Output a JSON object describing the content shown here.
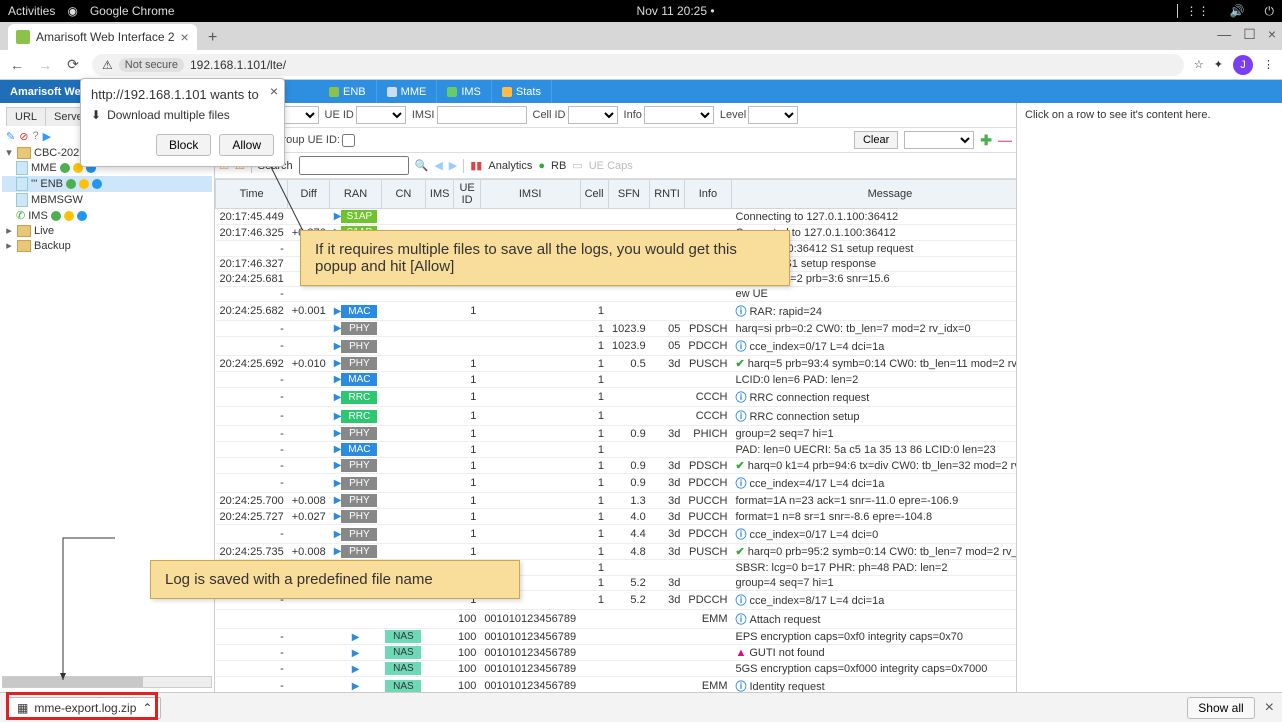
{
  "sys": {
    "activities": "Activities",
    "app": "Google Chrome",
    "clock": "Nov 11  20:25  •"
  },
  "tab": {
    "title": "Amarisoft Web Interface 2"
  },
  "addr": {
    "notsecure": "Not secure",
    "url": "192.168.1.101/lte/",
    "avatar": "J"
  },
  "bluetabs": {
    "title": "Amarisoft Web G",
    "enb": "ENB",
    "mme": "MME",
    "ims": "IMS",
    "stats": "Stats"
  },
  "subtabs": [
    "URL",
    "Server"
  ],
  "tree": {
    "root": "CBC-20210",
    "items": [
      {
        "label": "MME",
        "sel": false
      },
      {
        "label": "ENB",
        "sel": true
      },
      {
        "label": "MBMSGW",
        "sel": false
      },
      {
        "label": "IMS",
        "sel": false
      }
    ],
    "live": "Live",
    "backup": "Backup"
  },
  "filters": {
    "layer": "Layer",
    "ueid": "UE ID",
    "imsi": "IMSI",
    "cellid": "Cell ID",
    "info": "Info",
    "level": "Level",
    "time": "00:00.000",
    "group": "Group UE ID:",
    "clear": "Clear",
    "search": "Search",
    "analytics": "Analytics",
    "rb": "RB",
    "uecaps": "UE Caps"
  },
  "cols": [
    "Time",
    "Diff",
    "RAN",
    "CN",
    "IMS",
    "UE ID",
    "IMSI",
    "Cell",
    "SFN",
    "RNTI",
    "Info",
    "Message"
  ],
  "rows": [
    {
      "t": "20:17:45.449",
      "d": "",
      "r": "S1AP",
      "rc": "c-s1ap",
      "msg": "Connecting to 127.0.1.100:36412"
    },
    {
      "t": "20:17:46.325",
      "d": "+0.876",
      "r": "S1AP",
      "rc": "c-s1ap",
      "msg": "Connected to 127.0.1.100:36412"
    },
    {
      "t": "-",
      "d": "",
      "r": "S1AP",
      "rc": "c-s1ap",
      "msg": "127.0.1.100:36412 S1 setup request"
    },
    {
      "t": "20:17:46.327",
      "d": "",
      "r": "",
      "rc": "",
      "msg": "00:36412 S1 setup response"
    },
    {
      "t": "20:24:25.681",
      "d": "",
      "r": "",
      "rc": "",
      "msg": "hdex=24 ta=2 prb=3:6 snr=15.6"
    },
    {
      "t": "-",
      "d": "",
      "r": "",
      "rc": "",
      "msg": "ew UE"
    },
    {
      "t": "20:24:25.682",
      "d": "+0.001",
      "r": "MAC",
      "rc": "c-mac",
      "u": "1",
      "c": "1",
      "i": "i",
      "msg": "RAR: rapid=24"
    },
    {
      "t": "-",
      "d": "",
      "r": "PHY",
      "rc": "c-phy",
      "u": "",
      "c": "1",
      "sfn": "1023.9",
      "rnti": "05",
      "info": "PDSCH",
      "msg": "harq=si prb=0:2 CW0: tb_len=7 mod=2 rv_idx=0"
    },
    {
      "t": "-",
      "d": "",
      "r": "PHY",
      "rc": "c-phy",
      "u": "",
      "c": "1",
      "sfn": "1023.9",
      "rnti": "05",
      "info": "PDCCH",
      "i": "i",
      "msg": "cce_index=0/17 L=4 dci=1a"
    },
    {
      "t": "20:24:25.692",
      "d": "+0.010",
      "r": "PHY",
      "rc": "c-phy",
      "u": "1",
      "c": "1",
      "sfn": "0.5",
      "rnti": "3d",
      "info": "PUSCH",
      "i": "g",
      "msg": "harq=5 prb=93:4 symb=0:14 CW0: tb_len=11 mod=2 rv_idx="
    },
    {
      "t": "-",
      "d": "",
      "r": "MAC",
      "rc": "c-mac",
      "u": "1",
      "c": "1",
      "msg": "LCID:0 len=6 PAD: len=2"
    },
    {
      "t": "-",
      "d": "",
      "r": "RRC",
      "rc": "c-rrc",
      "u": "1",
      "c": "1",
      "info": "CCCH",
      "i": "i",
      "msg": "RRC connection request"
    },
    {
      "t": "-",
      "d": "",
      "r": "RRC",
      "rc": "c-rrc",
      "u": "1",
      "c": "1",
      "info": "CCCH",
      "i": "i",
      "msg": "RRC connection setup"
    },
    {
      "t": "-",
      "d": "",
      "r": "PHY",
      "rc": "c-phy",
      "u": "1",
      "c": "1",
      "sfn": "0.9",
      "rnti": "3d",
      "info": "PHICH",
      "msg": "group=2 seq=7 hi=1"
    },
    {
      "t": "-",
      "d": "",
      "r": "MAC",
      "rc": "c-mac",
      "u": "1",
      "c": "1",
      "msg": "PAD: len=0 UECRI: 5a c5 1a 35 13 86 LCID:0 len=23"
    },
    {
      "t": "-",
      "d": "",
      "r": "PHY",
      "rc": "c-phy",
      "u": "1",
      "c": "1",
      "sfn": "0.9",
      "rnti": "3d",
      "info": "PDSCH",
      "i": "g",
      "msg": "harq=0 k1=4 prb=94:6 tx=div CW0: tb_len=32 mod=2 rv_idx"
    },
    {
      "t": "-",
      "d": "",
      "r": "PHY",
      "rc": "c-phy",
      "u": "1",
      "c": "1",
      "sfn": "0.9",
      "rnti": "3d",
      "info": "PDCCH",
      "i": "i",
      "msg": "cce_index=4/17 L=4 dci=1a"
    },
    {
      "t": "20:24:25.700",
      "d": "+0.008",
      "r": "PHY",
      "rc": "c-phy",
      "u": "1",
      "c": "1",
      "sfn": "1.3",
      "rnti": "3d",
      "info": "PUCCH",
      "msg": "format=1A n=23 ack=1 snr=-11.0 epre=-106.9"
    },
    {
      "t": "20:24:25.727",
      "d": "+0.027",
      "r": "PHY",
      "rc": "c-phy",
      "u": "1",
      "c": "1",
      "sfn": "4.0",
      "rnti": "3d",
      "info": "PUCCH",
      "msg": "format=1 n=8 sr=1 snr=-8.6 epre=-104.8"
    },
    {
      "t": "-",
      "d": "",
      "r": "PHY",
      "rc": "c-phy",
      "u": "1",
      "c": "1",
      "sfn": "4.4",
      "rnti": "3d",
      "info": "PDCCH",
      "i": "i",
      "msg": "cce_index=0/17 L=4 dci=0"
    },
    {
      "t": "20:24:25.735",
      "d": "+0.008",
      "r": "PHY",
      "rc": "c-phy",
      "u": "1",
      "c": "1",
      "sfn": "4.8",
      "rnti": "3d",
      "info": "PUSCH",
      "i": "g",
      "msg": "harq=0 prb=95:2 symb=0:14 CW0: tb_len=7 mod=2 rv_idx=0"
    },
    {
      "t": "-",
      "d": "",
      "r": "MAC",
      "rc": "c-mac",
      "u": "1",
      "c": "1",
      "msg": "SBSR: lcg=0 b=17 PHR: ph=48 PAD: len=2"
    },
    {
      "t": "-",
      "d": "",
      "r": "",
      "rc": "",
      "u": "1",
      "c": "1",
      "sfn": "5.2",
      "rnti": "3d",
      "msg": "group=4 seq=7 hi=1"
    },
    {
      "t": "-",
      "d": "",
      "r": "",
      "rc": "",
      "u": "1",
      "c": "1",
      "sfn": "5.2",
      "rnti": "3d",
      "info": "PDCCH",
      "i": "i",
      "msg": "cce_index=8/17 L=4 dci=1a"
    },
    {
      "t": "",
      "d": "",
      "r": "",
      "rc": "",
      "u": "100",
      "imsi": "001010123456789",
      "info": "EMM",
      "i": "i",
      "msg": "Attach request"
    },
    {
      "t": "-",
      "d": "",
      "r": "",
      "cn": "NAS",
      "rc": "c-nas",
      "u": "100",
      "imsi": "001010123456789",
      "msg": "EPS encryption caps=0xf0 integrity caps=0x70"
    },
    {
      "t": "-",
      "d": "",
      "r": "",
      "cn": "NAS",
      "rc": "c-nas",
      "u": "100",
      "imsi": "001010123456789",
      "i": "w",
      "msg": "GUTI not found"
    },
    {
      "t": "-",
      "d": "",
      "r": "",
      "cn": "NAS",
      "rc": "c-nas",
      "u": "100",
      "imsi": "001010123456789",
      "msg": "5GS encryption caps=0xf000 integrity caps=0x7000"
    },
    {
      "t": "-",
      "d": "",
      "r": "",
      "cn": "NAS",
      "rc": "c-nas",
      "u": "100",
      "imsi": "001010123456789",
      "info": "EMM",
      "i": "i",
      "msg": "Identity request"
    }
  ],
  "rightpane": "Click on a row to see it's content here.",
  "popup": {
    "host": "http://192.168.1.101 wants to",
    "perm": "Download multiple files",
    "block": "Block",
    "allow": "Allow"
  },
  "dl": {
    "file": "mme-export.log.zip",
    "showall": "Show all"
  },
  "callout1": "If it requires multiple files to save all the logs, you would get this popup and hit [Allow]",
  "callout2": "Log is saved with a predefined file name"
}
